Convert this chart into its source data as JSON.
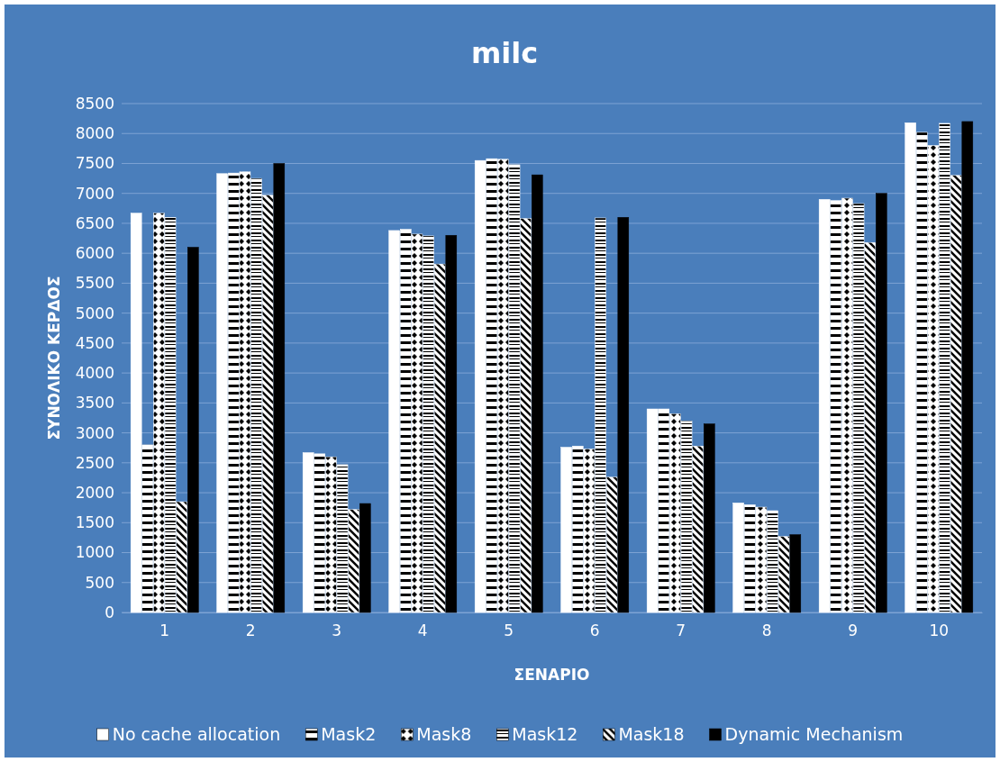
{
  "chart_data": {
    "type": "bar",
    "title": "milc",
    "xlabel": "ΣΕΝΑΡΙΟ",
    "ylabel": "ΣΥΝΟΛΙΚΟ ΚΕΡΔΟΣ",
    "categories": [
      "1",
      "2",
      "3",
      "4",
      "5",
      "6",
      "7",
      "8",
      "9",
      "10"
    ],
    "series": [
      {
        "name": "No cache allocation",
        "color": "#ffffff",
        "values": [
          6670,
          7330,
          2670,
          6380,
          7550,
          2760,
          3400,
          1830,
          6900,
          8180
        ]
      },
      {
        "name": "Mask2",
        "color": "#ffffff",
        "values": [
          2800,
          7340,
          2650,
          6400,
          7580,
          2780,
          3400,
          1800,
          6880,
          8020
        ]
      },
      {
        "name": "Mask8",
        "color": "#ffffff",
        "values": [
          6670,
          7360,
          2600,
          6320,
          7570,
          2730,
          3320,
          1760,
          6920,
          7800
        ]
      },
      {
        "name": "Mask12",
        "color": "#ffffff",
        "values": [
          6600,
          7250,
          2470,
          6290,
          7480,
          6590,
          3200,
          1700,
          6830,
          8170
        ]
      },
      {
        "name": "Mask18",
        "color": "#ffffff",
        "values": [
          1850,
          6970,
          1720,
          5820,
          6580,
          2260,
          2780,
          1270,
          6180,
          7300
        ]
      },
      {
        "name": "Dynamic Mechanism",
        "color": "#000000",
        "values": [
          6100,
          7500,
          1820,
          6300,
          7310,
          6600,
          3150,
          1300,
          7000,
          8200
        ]
      }
    ],
    "ylim": [
      0,
      8500
    ],
    "yticks": [
      0,
      500,
      1000,
      1500,
      2000,
      2500,
      3000,
      3500,
      4000,
      4500,
      5000,
      5500,
      6000,
      6500,
      7000,
      7500,
      8000,
      8500
    ],
    "grid": "y",
    "legend": "bottom"
  }
}
